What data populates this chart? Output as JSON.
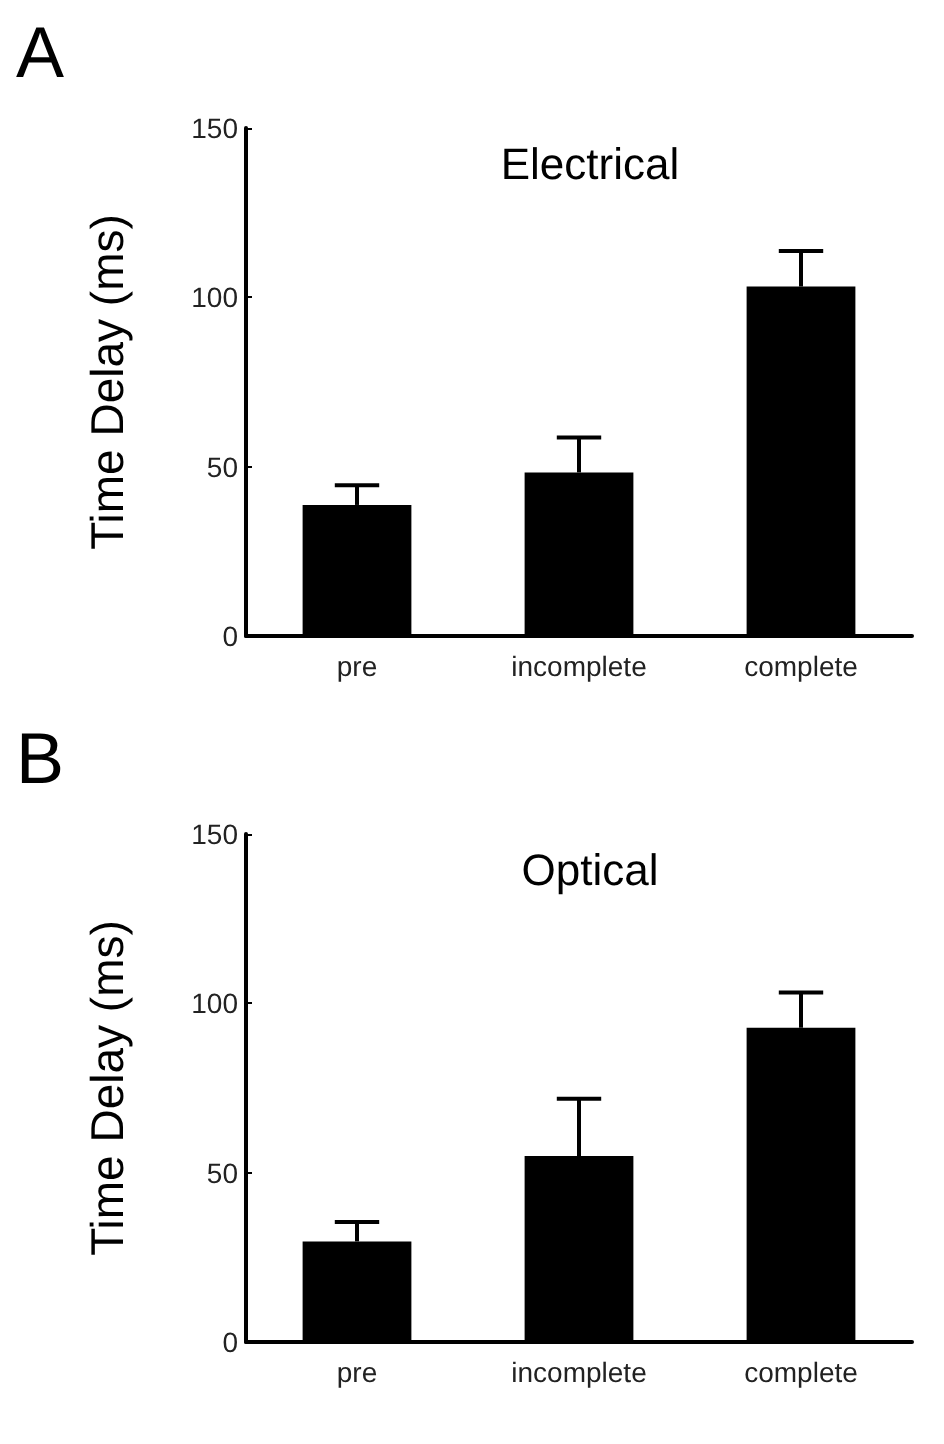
{
  "chart_data": [
    {
      "type": "bar",
      "title": "Electrical",
      "ylabel": "Time Delay (ms)",
      "annotations": [
        "A"
      ],
      "categories": [
        "pre",
        "incomplete",
        "complete"
      ],
      "values": [
        38.7,
        48.3,
        103.2
      ],
      "errors": [
        [
          38.7,
          44.5
        ],
        [
          48.3,
          58.6
        ],
        [
          103.2,
          113.7
        ]
      ],
      "color": "#000000",
      "ylim": [
        0,
        150
      ],
      "yticks": [
        0,
        50,
        100,
        150
      ],
      "grid": false
    },
    {
      "type": "bar",
      "title": "Optical",
      "ylabel": "Time Delay (ms)",
      "annotations": [
        "B"
      ],
      "categories": [
        "pre",
        "incomplete",
        "complete"
      ],
      "values": [
        29.7,
        54.9,
        92.8
      ],
      "errors": [
        [
          29.7,
          35.4
        ],
        [
          54.9,
          71.8
        ],
        [
          92.8,
          103.2
        ]
      ],
      "color": "#000000",
      "ylim": [
        0,
        150
      ],
      "yticks": [
        0,
        50,
        100,
        150
      ],
      "grid": false
    }
  ]
}
